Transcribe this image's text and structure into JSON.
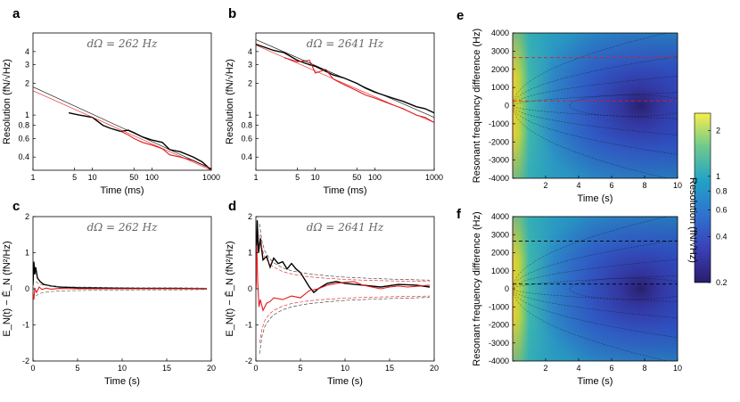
{
  "chart_data": [
    {
      "panel": "a",
      "type": "line",
      "annotation": "dΩ = 262  Hz",
      "xlabel": "Time (ms)",
      "ylabel": "Resolution (fN/√Hz)",
      "xscale": "log",
      "yscale": "log",
      "xlim": [
        1,
        1000
      ],
      "ylim": [
        0.3,
        6
      ],
      "xticks": [
        1,
        5,
        10,
        50,
        100,
        1000
      ],
      "xtick_labels": [
        "1",
        "5",
        "10",
        "50",
        "100",
        "1000"
      ],
      "yticks": [
        0.4,
        0.6,
        0.8,
        1,
        2,
        3,
        4
      ],
      "ytick_labels": [
        "0.4",
        "0.6",
        "0.8",
        "1",
        "2",
        "3",
        "4"
      ],
      "series": [
        {
          "name": "measured (black)",
          "color": "#000000",
          "x": [
            4,
            6,
            10,
            15,
            20,
            30,
            40,
            50,
            70,
            100,
            150,
            200,
            300,
            500,
            700,
            1000
          ],
          "y": [
            1.05,
            1.0,
            0.95,
            0.8,
            0.75,
            0.7,
            0.72,
            0.68,
            0.62,
            0.58,
            0.55,
            0.47,
            0.45,
            0.4,
            0.36,
            0.3
          ]
        },
        {
          "name": "measured (red)",
          "color": "#e41a1c",
          "x": [
            30,
            40,
            50,
            70,
            100,
            150,
            200,
            300,
            500,
            700,
            1000
          ],
          "y": [
            0.7,
            0.65,
            0.6,
            0.55,
            0.52,
            0.48,
            0.42,
            0.4,
            0.37,
            0.34,
            0.31
          ]
        },
        {
          "name": "theory (black)",
          "color": "#000000",
          "x": [
            1,
            1000
          ],
          "y": [
            1.85,
            0.31
          ]
        },
        {
          "name": "theory (red)",
          "color": "#e41a1c",
          "x": [
            1,
            1000
          ],
          "y": [
            1.7,
            0.3
          ]
        }
      ]
    },
    {
      "panel": "b",
      "type": "line",
      "annotation": "dΩ = 2641  Hz",
      "xlabel": "Time (ms)",
      "ylabel": "Resolution (fN/√Hz)",
      "xscale": "log",
      "yscale": "log",
      "xlim": [
        1,
        1000
      ],
      "ylim": [
        0.3,
        6
      ],
      "xticks": [
        1,
        5,
        10,
        50,
        100,
        1000
      ],
      "xtick_labels": [
        "1",
        "5",
        "10",
        "50",
        "100",
        "1000"
      ],
      "yticks": [
        0.4,
        0.6,
        0.8,
        1,
        2,
        3,
        4
      ],
      "ytick_labels": [
        "0.4",
        "0.6",
        "0.8",
        "1",
        "2",
        "3",
        "4"
      ],
      "series": [
        {
          "name": "measured (black)",
          "color": "#000000",
          "x": [
            1,
            2,
            3,
            5,
            8,
            10,
            20,
            30,
            50,
            70,
            100,
            200,
            300,
            500,
            700,
            1000
          ],
          "y": [
            4.7,
            4.1,
            3.9,
            3.3,
            3.0,
            2.9,
            2.4,
            2.25,
            2.0,
            1.8,
            1.65,
            1.45,
            1.35,
            1.2,
            1.15,
            1.05
          ]
        },
        {
          "name": "measured (red)",
          "color": "#e41a1c",
          "x": [
            3,
            5,
            8,
            10,
            15,
            20,
            30,
            50,
            70,
            100,
            200,
            300,
            500,
            700,
            1000
          ],
          "y": [
            3.5,
            3.2,
            3.3,
            2.5,
            2.7,
            2.2,
            1.95,
            1.7,
            1.55,
            1.45,
            1.25,
            1.15,
            1.0,
            0.95,
            0.85
          ]
        },
        {
          "name": "theory (black)",
          "color": "#000000",
          "x": [
            1,
            1000
          ],
          "y": [
            5.2,
            0.95
          ]
        },
        {
          "name": "theory (red)",
          "color": "#e41a1c",
          "x": [
            1,
            1000
          ],
          "y": [
            4.6,
            0.85
          ]
        }
      ]
    },
    {
      "panel": "c",
      "type": "line",
      "annotation": "dΩ = 262  Hz",
      "xlabel": "Time (s)",
      "ylabel": "E_N(t) − Ē_N  (fN²/Hz)",
      "xlim": [
        0,
        20
      ],
      "ylim": [
        -2,
        2
      ],
      "xticks": [
        0,
        5,
        10,
        15,
        20
      ],
      "xtick_labels": [
        "0",
        "5",
        "10",
        "15",
        "20"
      ],
      "yticks": [
        -2,
        -1,
        0,
        1,
        2
      ],
      "ytick_labels": [
        "-2",
        "-1",
        "0",
        "1",
        "2"
      ],
      "series": [
        {
          "name": "black",
          "color": "#000000",
          "x": [
            0,
            0.1,
            0.2,
            0.3,
            0.5,
            0.8,
            1.2,
            2,
            3,
            5,
            8,
            12,
            16,
            19.5
          ],
          "y": [
            0.1,
            0.75,
            0.4,
            0.6,
            0.3,
            0.2,
            0.12,
            0.08,
            0.05,
            0.03,
            0.02,
            0.01,
            0.01,
            0.0
          ]
        },
        {
          "name": "red",
          "color": "#e41a1c",
          "x": [
            0,
            0.1,
            0.2,
            0.4,
            0.7,
            1.0,
            1.5,
            2,
            3,
            5,
            8,
            12,
            16,
            19.5
          ],
          "y": [
            -0.1,
            -0.3,
            0.0,
            -0.1,
            0.05,
            -0.02,
            0.02,
            -0.01,
            0.01,
            0.0,
            0.0,
            0.0,
            0.0,
            0.0
          ]
        },
        {
          "name": "bound +",
          "color": "#555555",
          "x": [
            0.3,
            0.6,
            1,
            2,
            3,
            5,
            8,
            12,
            16,
            19.5
          ],
          "y": [
            0.2,
            0.15,
            0.11,
            0.08,
            0.06,
            0.05,
            0.04,
            0.03,
            0.03,
            0.02
          ]
        },
        {
          "name": "bound −",
          "color": "#555555",
          "x": [
            0.3,
            0.6,
            1,
            2,
            3,
            5,
            8,
            12,
            16,
            19.5
          ],
          "y": [
            -0.2,
            -0.15,
            -0.11,
            -0.08,
            -0.06,
            -0.05,
            -0.04,
            -0.03,
            -0.03,
            -0.02
          ]
        }
      ]
    },
    {
      "panel": "d",
      "type": "line",
      "annotation": "dΩ = 2641  Hz",
      "xlabel": "Time (s)",
      "ylabel": "E_N(t) − Ē_N  (fN²/Hz)",
      "xlim": [
        0,
        20
      ],
      "ylim": [
        -2,
        2
      ],
      "xticks": [
        0,
        5,
        10,
        15,
        20
      ],
      "xtick_labels": [
        "0",
        "5",
        "10",
        "15",
        "20"
      ],
      "yticks": [
        -2,
        -1,
        0,
        1,
        2
      ],
      "ytick_labels": [
        "-2",
        "-1",
        "0",
        "1",
        "2"
      ],
      "series": [
        {
          "name": "black",
          "color": "#000000",
          "x": [
            0,
            0.15,
            0.3,
            0.5,
            0.8,
            1.2,
            1.6,
            2,
            2.5,
            3,
            3.5,
            4,
            4.5,
            5,
            5.5,
            6,
            6.5,
            7,
            8,
            9,
            10,
            12,
            14,
            16,
            18,
            19.5
          ],
          "y": [
            0.0,
            1.9,
            1.0,
            1.4,
            0.8,
            0.9,
            0.6,
            0.85,
            0.7,
            0.75,
            0.55,
            0.7,
            0.55,
            0.45,
            0.25,
            0.05,
            -0.1,
            0.0,
            0.15,
            0.2,
            0.15,
            0.1,
            0.05,
            0.12,
            0.1,
            0.05
          ]
        },
        {
          "name": "red",
          "color": "#e41a1c",
          "x": [
            0,
            0.1,
            0.2,
            0.35,
            0.5,
            0.8,
            1.2,
            1.6,
            2,
            3,
            4,
            5,
            6,
            7,
            8,
            9,
            10,
            11,
            12,
            13,
            14,
            15,
            16,
            17,
            18,
            19.5
          ],
          "y": [
            0.0,
            1.2,
            0.2,
            -0.5,
            -0.3,
            -0.6,
            -0.4,
            -0.35,
            -0.25,
            -0.3,
            -0.2,
            -0.25,
            -0.05,
            0.0,
            0.1,
            0.15,
            0.18,
            0.2,
            0.1,
            0.05,
            0.0,
            0.05,
            0.08,
            0.05,
            0.07,
            0.1
          ]
        },
        {
          "name": "bound + (black)",
          "color": "#333333",
          "x": [
            0.4,
            0.7,
            1,
            1.5,
            2,
            3,
            4,
            5,
            6,
            8,
            10,
            12,
            15,
            19.5
          ],
          "y": [
            1.8,
            1.3,
            1.05,
            0.85,
            0.72,
            0.58,
            0.5,
            0.45,
            0.41,
            0.36,
            0.32,
            0.3,
            0.27,
            0.24
          ]
        },
        {
          "name": "bound − (black)",
          "color": "#333333",
          "x": [
            0.4,
            0.7,
            1,
            1.5,
            2,
            3,
            4,
            5,
            6,
            8,
            10,
            12,
            15,
            19.5
          ],
          "y": [
            -1.8,
            -1.3,
            -1.05,
            -0.85,
            -0.72,
            -0.58,
            -0.5,
            -0.45,
            -0.41,
            -0.36,
            -0.32,
            -0.3,
            -0.27,
            -0.24
          ]
        },
        {
          "name": "bound + (red)",
          "color": "#e41a1c",
          "x": [
            0.4,
            0.7,
            1,
            1.5,
            2,
            3,
            4,
            5,
            6,
            8,
            10,
            12,
            15,
            19.5
          ],
          "y": [
            1.5,
            1.1,
            0.88,
            0.7,
            0.6,
            0.48,
            0.41,
            0.37,
            0.33,
            0.29,
            0.26,
            0.24,
            0.22,
            0.2
          ]
        },
        {
          "name": "bound − (red)",
          "color": "#e41a1c",
          "x": [
            0.4,
            0.7,
            1,
            1.5,
            2,
            3,
            4,
            5,
            6,
            8,
            10,
            12,
            15,
            19.5
          ],
          "y": [
            -1.5,
            -1.1,
            -0.88,
            -0.7,
            -0.6,
            -0.48,
            -0.41,
            -0.37,
            -0.33,
            -0.29,
            -0.26,
            -0.24,
            -0.22,
            -0.2
          ]
        }
      ]
    },
    {
      "panel": "e",
      "type": "heatmap",
      "xlabel": "Time (s)",
      "ylabel": "Resonant frequency difference (Hz)",
      "xlim": [
        0,
        10
      ],
      "ylim": [
        -4000,
        4000
      ],
      "xticks": [
        2,
        4,
        6,
        8,
        10
      ],
      "xtick_labels": [
        "2",
        "4",
        "6",
        "8",
        "10"
      ],
      "yticks": [
        -4000,
        -3000,
        -2000,
        -1000,
        0,
        1000,
        2000,
        3000,
        4000
      ],
      "ytick_labels": [
        "-4000",
        "-3000",
        "-2000",
        "-1000",
        "0",
        "1000",
        "2000",
        "3000",
        "4000"
      ],
      "value_label": "Resolution (fN/√Hz)",
      "dashed_lines": [
        {
          "y": 2641,
          "color": "#e41a1c"
        },
        {
          "y": 262,
          "color": "#e41a1c"
        }
      ]
    },
    {
      "panel": "f",
      "type": "heatmap",
      "xlabel": "Time (s)",
      "ylabel": "Resonant frequency difference (Hz)",
      "xlim": [
        0,
        10
      ],
      "ylim": [
        -4000,
        4000
      ],
      "xticks": [
        2,
        4,
        6,
        8,
        10
      ],
      "xtick_labels": [
        "2",
        "4",
        "6",
        "8",
        "10"
      ],
      "yticks": [
        -4000,
        -3000,
        -2000,
        -1000,
        0,
        1000,
        2000,
        3000,
        4000
      ],
      "ytick_labels": [
        "-4000",
        "-3000",
        "-2000",
        "-1000",
        "0",
        "1000",
        "2000",
        "3000",
        "4000"
      ],
      "value_label": "Resolution (fN/√Hz)",
      "dashed_lines": [
        {
          "y": 2641,
          "color": "#000000"
        },
        {
          "y": 262,
          "color": "#000000"
        }
      ]
    }
  ],
  "colorbar": {
    "label": "Resolution (fN/√Hz)",
    "ticks": [
      0.2,
      0.4,
      0.6,
      0.8,
      1,
      2
    ],
    "tick_labels": [
      "0.2",
      "0.4",
      "0.6",
      "0.8",
      "1",
      "2"
    ],
    "range": [
      0.2,
      2.6
    ]
  }
}
